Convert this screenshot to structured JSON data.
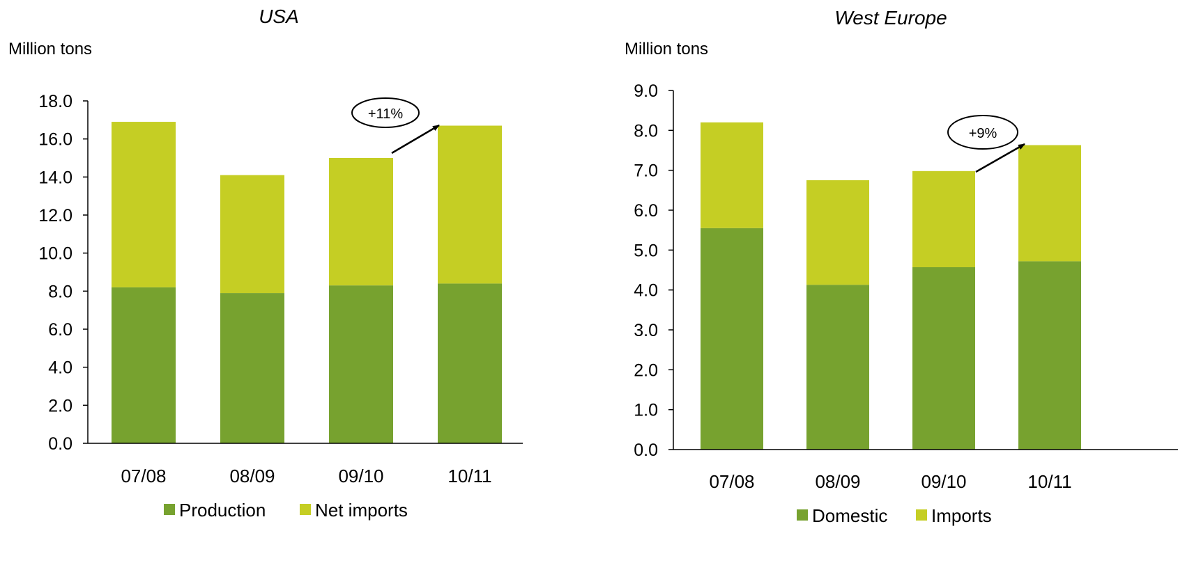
{
  "colors": {
    "primary": "#77A22F",
    "secondary": "#C5CE24",
    "axis": "#000000"
  },
  "chart_data": [
    {
      "type": "bar",
      "stacked": true,
      "title": "USA",
      "ylabel": "Million tons",
      "categories": [
        "07/08",
        "08/09",
        "09/10",
        "10/11"
      ],
      "series": [
        {
          "name": "Production",
          "values": [
            8.2,
            7.9,
            8.3,
            8.4
          ]
        },
        {
          "name": "Net imports",
          "values": [
            8.7,
            6.2,
            6.7,
            8.3
          ]
        }
      ],
      "ylim": [
        0,
        18
      ],
      "yticks": [
        "0.0",
        "2.0",
        "4.0",
        "6.0",
        "8.0",
        "10.0",
        "12.0",
        "14.0",
        "16.0",
        "18.0"
      ],
      "annotation": {
        "text": "+11%",
        "from": "09/10",
        "to": "10/11"
      },
      "grid": false,
      "legend": "bottom"
    },
    {
      "type": "bar",
      "stacked": true,
      "title": "West Europe",
      "ylabel": "Million tons",
      "categories": [
        "07/08",
        "08/09",
        "09/10",
        "10/11"
      ],
      "series": [
        {
          "name": "Domestic",
          "values": [
            5.55,
            4.13,
            4.57,
            4.72
          ]
        },
        {
          "name": "Imports",
          "values": [
            2.65,
            2.62,
            2.41,
            2.91
          ]
        }
      ],
      "ylim": [
        0,
        9
      ],
      "yticks": [
        "0.0",
        "1.0",
        "2.0",
        "3.0",
        "4.0",
        "5.0",
        "6.0",
        "7.0",
        "8.0",
        "9.0"
      ],
      "annotation": {
        "text": "+9%",
        "from": "09/10",
        "to": "10/11"
      },
      "grid": false,
      "legend": "bottom"
    }
  ]
}
